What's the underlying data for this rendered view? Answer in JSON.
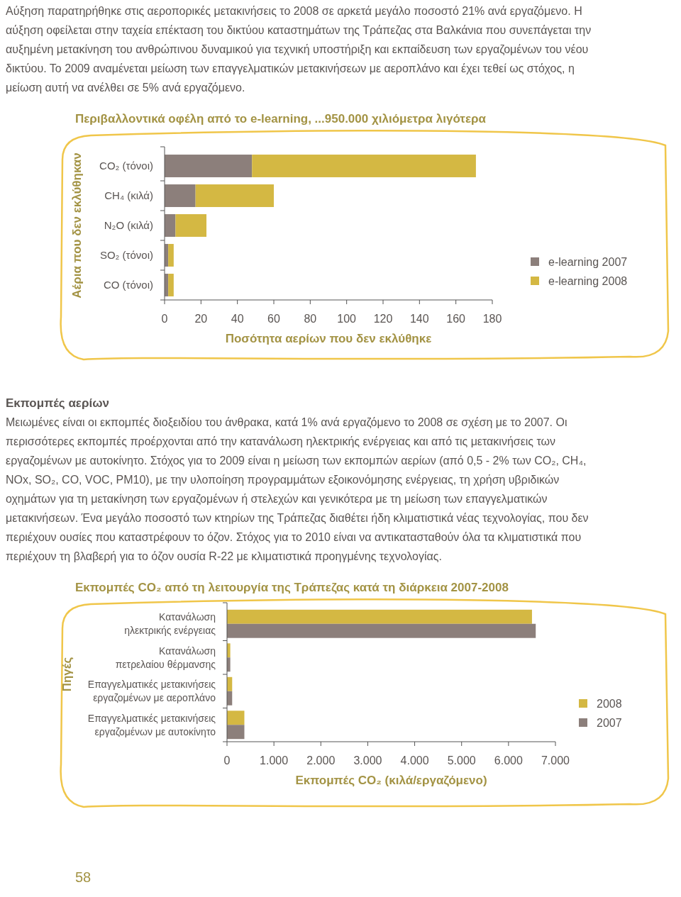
{
  "chart_data": [
    {
      "type": "bar",
      "title": "Περιβαλλοντικά οφέλη από το e-learning, ...950.000 χιλιόμετρα λιγότερα",
      "xlabel": "Ποσότητα αερίων που δεν εκλύθηκε",
      "ylabel": "Αέρια που δεν εκλύθηκαν",
      "annotations": [
        "Αύξηση παρατηρήθηκε στις αεροπορικές μετακινήσεις το 2008 σε αρκετά μεγάλο ποσοστό 21% ανά εργαζόμενο. Η αύξηση οφείλεται στην ταχεία επέκταση του δικτύου καταστημάτων της Τράπεζας στα Βαλκάνια που συνεπάγεται την αυξημένη μετακίνηση του ανθρώπινου δυναμικού για τεχνική υποστήριξη και εκπαίδευση των εργαζομένων του νέου δικτύου. Το 2009 αναμένεται μείωση των επαγγελματικών μετακινήσεων με αεροπλάνο και έχει τεθεί ως στόχος, η μείωση αυτή να ανέλθει σε 5% ανά εργαζόμενο."
      ],
      "categories": [
        "CO₂ (τόνοι)",
        "CH₄ (κιλά)",
        "N₂O (κιλά)",
        "SO₂ (τόνοι)",
        "CO (τόνοι)"
      ],
      "orientation": "horizontal",
      "stacked": true,
      "series": [
        {
          "name": "e-learning 2007",
          "color": "#8c7f7b",
          "values": [
            48,
            17,
            6,
            2,
            2
          ]
        },
        {
          "name": "e-learning 2008",
          "color": "#d4b843",
          "values": [
            123,
            43,
            17,
            3,
            3
          ]
        }
      ],
      "xlim": [
        0,
        180
      ],
      "xticks": [
        0,
        20,
        40,
        60,
        80,
        100,
        120,
        140,
        160,
        180
      ],
      "legend": "right"
    },
    {
      "type": "bar",
      "title": "Εκπομπές CO₂ από τη λειτουργία της Τράπεζας κατά τη διάρκεια 2007-2008",
      "xlabel": "Εκπομπές CO₂ (κιλά/εργαζόμενο)",
      "ylabel": "Πηγές",
      "annotations": [
        "Εκπομπές αερίων",
        "Μειωμένες είναι οι εκπομπές διοξειδίου του άνθρακα, κατά 1% ανά εργαζόμενο το 2008 σε σχέση με το 2007. Οι περισσότερες εκπομπές προέρχονται από την κατανάλωση ηλεκτρικής ενέργειας και από τις μετακινήσεις των εργαζομένων με αυτοκίνητο. Στόχος για το 2009 είναι η μείωση των εκπομπών αερίων (από 0,5 - 2% των CO₂, CH₄, NOx, SO₂, CO, VOC, PM10), με την υλοποίηση προγραμμάτων εξοικονόμησης ενέργειας, τη χρήση υβριδικών οχημάτων για τη μετακίνηση των εργαζομένων ή στελεχών και γενικότερα με τη μείωση των επαγγελματικών μετακινήσεων. Ένα μεγάλο ποσοστό των κτηρίων της Τράπεζας διαθέτει ήδη κλιματιστικά νέας τεχνολογίας, που δεν περιέχουν ουσίες που καταστρέφουν το όζον. Στόχος για το 2010 είναι να αντικατασταθούν όλα τα κλιματιστικά που περιέχουν τη βλαβερή για το όζον ουσία R-22 με κλιματιστικά προηγμένης τεχνολογίας.",
        "58"
      ],
      "categories": [
        "Κατανάλωση ηλεκτρικής ενέργειας",
        "Κατανάλωση πετρελαίου θέρμανσης",
        "Επαγγελματικές μετακινήσεις εργαζομένων με αεροπλάνο",
        "Επαγγελματικές μετακινήσεις εργαζομένων με αυτοκίνητο"
      ],
      "orientation": "horizontal",
      "series": [
        {
          "name": "2008",
          "color": "#d4b843",
          "values": [
            6500,
            70,
            110,
            370
          ]
        },
        {
          "name": "2007",
          "color": "#8c7f7b",
          "values": [
            6580,
            70,
            110,
            370
          ]
        }
      ],
      "xlim": [
        0,
        7000
      ],
      "xticks": [
        0,
        {
          "value": 1000,
          "label": "1.000"
        },
        {
          "value": 2000,
          "label": "2.000"
        },
        {
          "value": 3000,
          "label": "3.000"
        },
        {
          "value": 4000,
          "label": "4.000"
        },
        {
          "value": 5000,
          "label": "5.000"
        },
        {
          "value": 6000,
          "label": "6.000"
        },
        {
          "value": 7000,
          "label": "7.000"
        }
      ],
      "legend": "right"
    }
  ]
}
